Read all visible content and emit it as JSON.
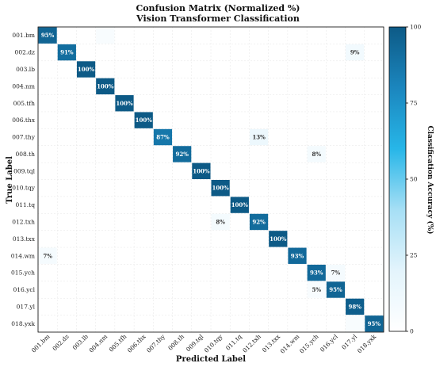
{
  "chart_data": {
    "type": "heatmap",
    "title": "Confusion Matrix (Normalized %)",
    "subtitle": "Vision Transformer Classification",
    "xlabel": "Predicted Label",
    "ylabel": "True Label",
    "labels": [
      "001.bm",
      "002.dz",
      "003.lb",
      "004.nm",
      "005.tfh",
      "006.thx",
      "007.thy",
      "008.th",
      "009.tql",
      "010.tqy",
      "011.tq",
      "012.txh",
      "013.txx",
      "014.wm",
      "015.ych",
      "016.ycl",
      "017.yl",
      "018.yxk"
    ],
    "cells": [
      {
        "row": 0,
        "col": 0,
        "value": 95,
        "text": "95%"
      },
      {
        "row": 0,
        "col": 3,
        "value": 5,
        "text": ""
      },
      {
        "row": 1,
        "col": 1,
        "value": 91,
        "text": "91%"
      },
      {
        "row": 1,
        "col": 16,
        "value": 9,
        "text": "9%"
      },
      {
        "row": 2,
        "col": 2,
        "value": 100,
        "text": "100%"
      },
      {
        "row": 3,
        "col": 3,
        "value": 100,
        "text": "100%"
      },
      {
        "row": 4,
        "col": 4,
        "value": 100,
        "text": "100%"
      },
      {
        "row": 5,
        "col": 5,
        "value": 100,
        "text": "100%"
      },
      {
        "row": 6,
        "col": 6,
        "value": 87,
        "text": "87%"
      },
      {
        "row": 6,
        "col": 11,
        "value": 13,
        "text": "13%"
      },
      {
        "row": 7,
        "col": 7,
        "value": 92,
        "text": "92%"
      },
      {
        "row": 7,
        "col": 14,
        "value": 8,
        "text": "8%"
      },
      {
        "row": 8,
        "col": 8,
        "value": 100,
        "text": "100%"
      },
      {
        "row": 9,
        "col": 9,
        "value": 100,
        "text": "100%"
      },
      {
        "row": 10,
        "col": 10,
        "value": 100,
        "text": "100%"
      },
      {
        "row": 11,
        "col": 9,
        "value": 8,
        "text": "8%"
      },
      {
        "row": 11,
        "col": 11,
        "value": 92,
        "text": "92%"
      },
      {
        "row": 12,
        "col": 12,
        "value": 100,
        "text": "100%"
      },
      {
        "row": 13,
        "col": 0,
        "value": 7,
        "text": "7%"
      },
      {
        "row": 13,
        "col": 13,
        "value": 93,
        "text": "93%"
      },
      {
        "row": 14,
        "col": 14,
        "value": 93,
        "text": "93%"
      },
      {
        "row": 14,
        "col": 15,
        "value": 7,
        "text": "7%"
      },
      {
        "row": 15,
        "col": 14,
        "value": 5,
        "text": "5%"
      },
      {
        "row": 15,
        "col": 15,
        "value": 95,
        "text": "95%"
      },
      {
        "row": 16,
        "col": 16,
        "value": 98,
        "text": "98%"
      },
      {
        "row": 17,
        "col": 16,
        "value": 5,
        "text": ""
      },
      {
        "row": 17,
        "col": 17,
        "value": 95,
        "text": "95%"
      }
    ],
    "colorbar": {
      "label": "Classification Accuracy (%)",
      "range": [
        0,
        100
      ],
      "ticks": [
        "0",
        "25",
        "50",
        "75",
        "100"
      ]
    },
    "colormap": [
      "#ffffff",
      "#e3f4fc",
      "#a6dff5",
      "#27b6e8",
      "#1b86be",
      "#0d5a86"
    ],
    "grid": true
  }
}
